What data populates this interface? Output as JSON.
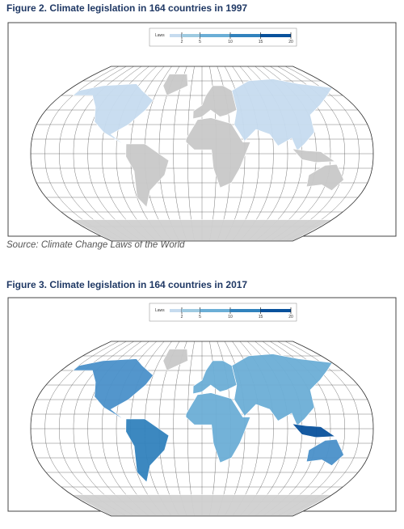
{
  "figures": [
    {
      "title": "Figure 2. Climate legislation in 164 countries in 1997",
      "legend": {
        "title": "Laws",
        "ticks": [
          2,
          5,
          10,
          15,
          20
        ],
        "colors": [
          "#c6dbef",
          "#9ecae1",
          "#6baed6",
          "#3182bd",
          "#08519c"
        ]
      }
    },
    {
      "title": "Figure 3. Climate legislation in 164 countries in 2017",
      "legend": {
        "title": "Laws",
        "ticks": [
          2,
          5,
          10,
          15,
          20
        ],
        "colors": [
          "#c6dbef",
          "#9ecae1",
          "#6baed6",
          "#3182bd",
          "#08519c"
        ]
      }
    }
  ],
  "source": "Source: Climate Change Laws of the World"
}
